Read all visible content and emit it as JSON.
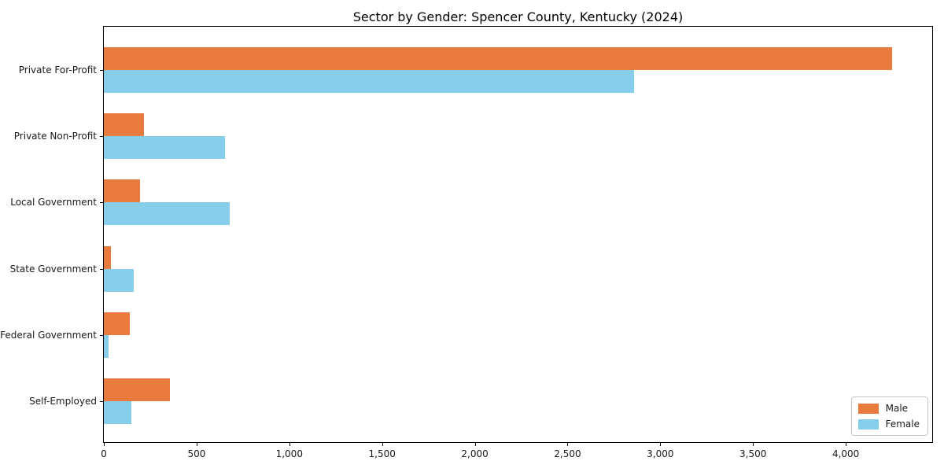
{
  "chart_data": {
    "type": "bar",
    "orientation": "horizontal",
    "title": "Sector by Gender: Spencer County, Kentucky (2024)",
    "categories": [
      "Private For-Profit",
      "Private Non-Profit",
      "Local Government",
      "State Government",
      "Federal Government",
      "Self-Employed"
    ],
    "series": [
      {
        "name": "Male",
        "color": "#e87b3d",
        "values": [
          4250,
          215,
          196,
          38,
          140,
          356
        ]
      },
      {
        "name": "Female",
        "color": "#87ceeb",
        "values": [
          2860,
          655,
          680,
          162,
          24,
          148
        ]
      }
    ],
    "xlabel": "",
    "ylabel": "",
    "xlim": [
      0,
      4466
    ],
    "xticks": [
      0,
      500,
      1000,
      1500,
      2000,
      2500,
      3000,
      3500,
      4000
    ],
    "xtick_labels": [
      "0",
      "500",
      "1,000",
      "1,500",
      "2,000",
      "2,500",
      "3,000",
      "3,500",
      "4,000"
    ],
    "grid": false,
    "legend": {
      "position": "lower right",
      "entries": [
        "Male",
        "Female"
      ]
    },
    "spine_color": "#000000",
    "background_color": "#ffffff"
  }
}
